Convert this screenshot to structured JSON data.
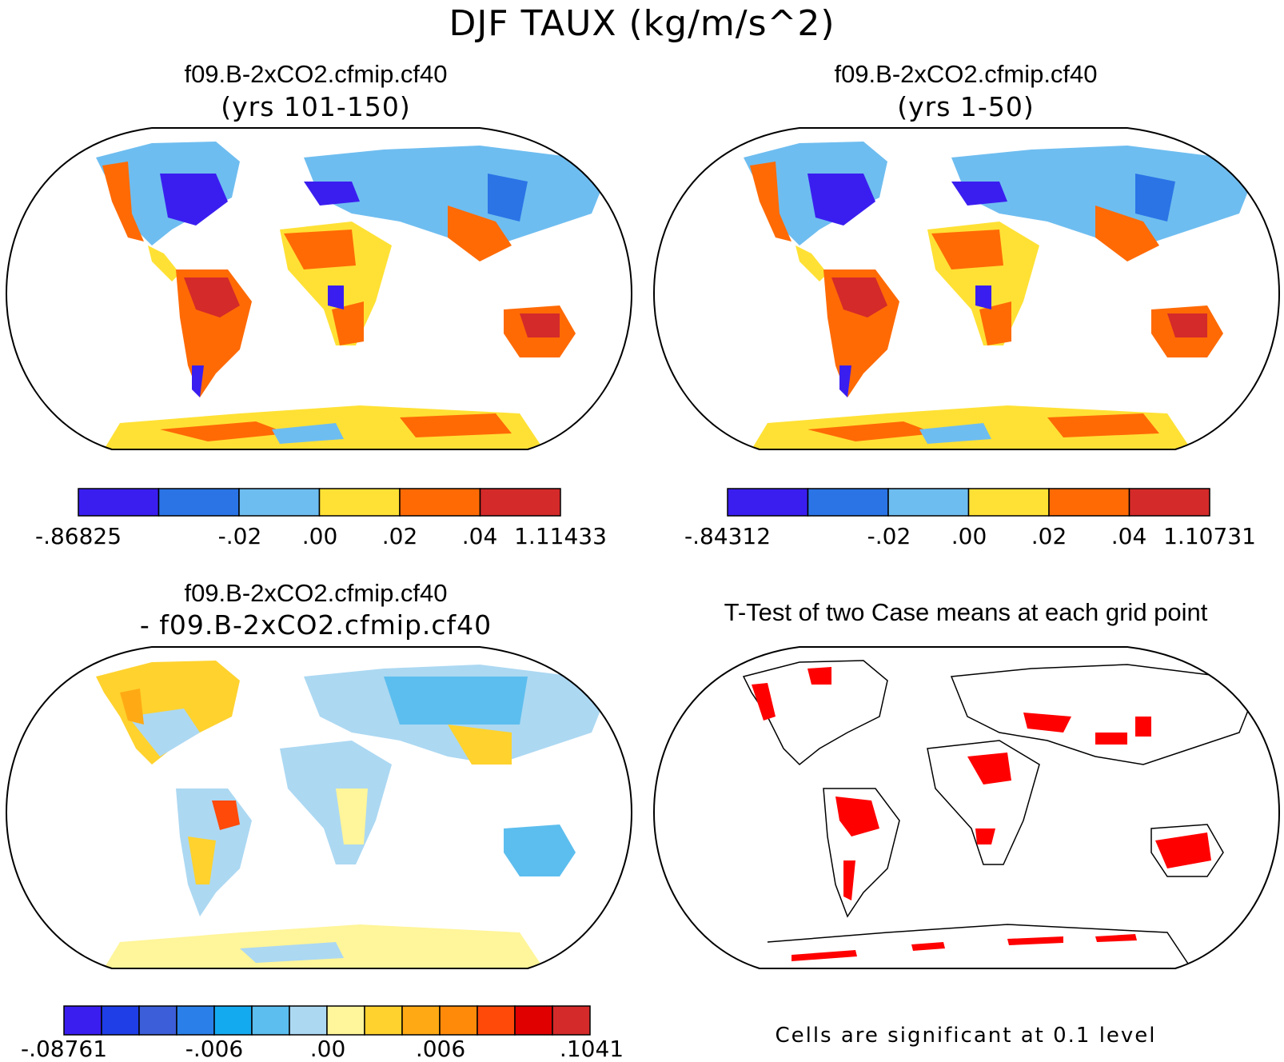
{
  "figure_title": "DJF TAUX (kg/m/s^2)",
  "panels": [
    {
      "title": "f09.B-2xCO2.cfmip.cf40",
      "subtitle": "(yrs 101-150)",
      "colorbar": {
        "colors": [
          "#3a1ef0",
          "#2a74e6",
          "#6ebdf0",
          "#ffe135",
          "#ff6a05",
          "#d42a2a"
        ],
        "labels": [
          "-.86825",
          "-.02",
          ".00",
          ".02",
          ".04",
          "1.11433"
        ]
      }
    },
    {
      "title": "f09.B-2xCO2.cfmip.cf40",
      "subtitle": "(yrs 1-50)",
      "colorbar": {
        "colors": [
          "#3a1ef0",
          "#2a74e6",
          "#6ebdf0",
          "#ffe135",
          "#ff6a05",
          "#d42a2a"
        ],
        "labels": [
          "-.84312",
          "-.02",
          ".00",
          ".02",
          ".04",
          "1.10731"
        ]
      }
    },
    {
      "title": "f09.B-2xCO2.cfmip.cf40",
      "subtitle": "- f09.B-2xCO2.cfmip.cf40",
      "colorbar": {
        "colors": [
          "#3a1ef0",
          "#1f3ee8",
          "#3c5ed8",
          "#2a80e8",
          "#14aaf0",
          "#5cbeee",
          "#acd8f2",
          "#fff59a",
          "#ffd22e",
          "#ffaa14",
          "#ff8a0a",
          "#ff4a0a",
          "#e00000",
          "#d42a2a"
        ],
        "labels": [
          "-.08761",
          "-.006",
          ".00",
          ".006",
          ".1041"
        ]
      }
    },
    {
      "title": "T-Test of two Case means at each grid point",
      "note": "Cells are significant at 0.1 level",
      "significant_color": "#ff0000"
    }
  ]
}
